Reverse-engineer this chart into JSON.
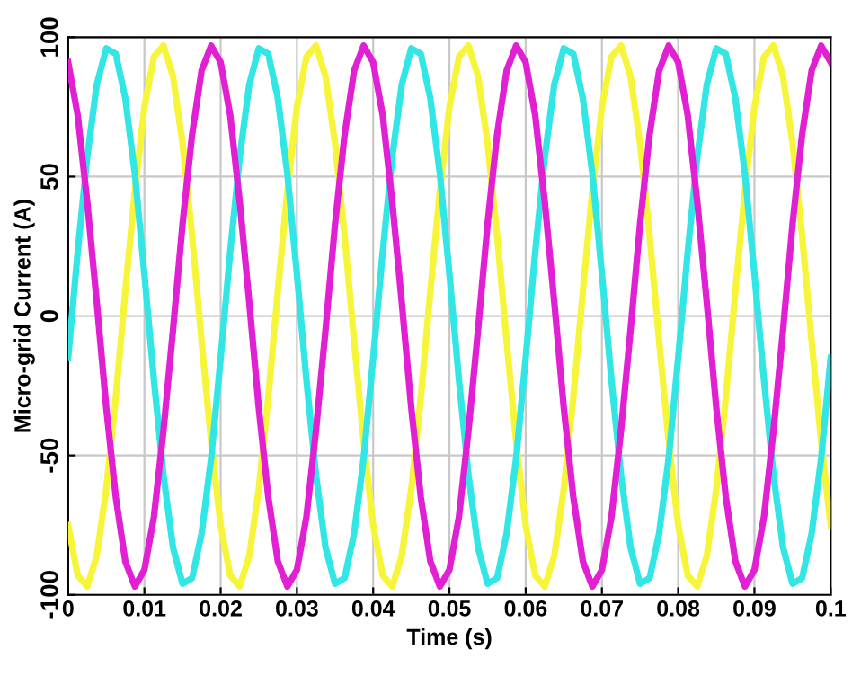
{
  "chart_data": {
    "type": "line",
    "xlabel": "Time (s)",
    "ylabel": "Micro-grid Current (A)",
    "x": [
      0,
      0.00125,
      0.0025,
      0.00375,
      0.005,
      0.00625,
      0.0075,
      0.00875,
      0.01,
      0.01125,
      0.0125,
      0.01375,
      0.015,
      0.01625,
      0.0175,
      0.01875,
      0.02,
      0.02125,
      0.0225,
      0.02375,
      0.025,
      0.02625,
      0.0275,
      0.02875,
      0.03,
      0.03125,
      0.0325,
      0.03375,
      0.035,
      0.03625,
      0.0375,
      0.03875,
      0.04,
      0.04125,
      0.0425,
      0.04375,
      0.045,
      0.04625,
      0.0475,
      0.04875,
      0.05,
      0.05125,
      0.0525,
      0.05375,
      0.055,
      0.05625,
      0.0575,
      0.05875,
      0.06,
      0.06125,
      0.0625,
      0.06375,
      0.065,
      0.06625,
      0.0675,
      0.06875,
      0.07,
      0.07125,
      0.0725,
      0.07375,
      0.075,
      0.07625,
      0.0775,
      0.07875,
      0.08,
      0.08125,
      0.0825,
      0.08375,
      0.085,
      0.08625,
      0.0875,
      0.08875,
      0.09,
      0.09125,
      0.0925,
      0.09375,
      0.095,
      0.09625,
      0.0975,
      0.09875,
      0.1
    ],
    "series": [
      {
        "color": "#f7f53a",
        "values": [
          -75,
          -93,
          -97,
          -86,
          -62,
          -29,
          9,
          45,
          75,
          93,
          97,
          86,
          62,
          29,
          -9,
          -45,
          -75,
          -93,
          -97,
          -86,
          -62,
          -29,
          9,
          45,
          75,
          93,
          97,
          86,
          62,
          29,
          -9,
          -45,
          -75,
          -93,
          -97,
          -86,
          -62,
          -29,
          9,
          45,
          75,
          93,
          97,
          86,
          62,
          29,
          -9,
          -45,
          -75,
          -93,
          -97,
          -86,
          -62,
          -29,
          9,
          45,
          75,
          93,
          97,
          86,
          62,
          29,
          -9,
          -45,
          -75,
          -93,
          -97,
          -86,
          -62,
          -29,
          9,
          45,
          75,
          93,
          97,
          86,
          62,
          29,
          -9,
          -45,
          -75
        ]
      },
      {
        "color": "#33e6e6",
        "values": [
          -15,
          23,
          57,
          83,
          96,
          94,
          78,
          51,
          15,
          -23,
          -57,
          -83,
          -96,
          -94,
          -78,
          -51,
          -15,
          23,
          57,
          83,
          96,
          94,
          78,
          51,
          15,
          -23,
          -57,
          -83,
          -96,
          -94,
          -78,
          -51,
          -15,
          23,
          57,
          83,
          96,
          94,
          78,
          51,
          15,
          -23,
          -57,
          -83,
          -96,
          -94,
          -78,
          -51,
          -15,
          23,
          57,
          83,
          96,
          94,
          78,
          51,
          15,
          -23,
          -57,
          -83,
          -96,
          -94,
          -78,
          -51,
          -15,
          23,
          57,
          83,
          96,
          94,
          78,
          51,
          15,
          -23,
          -57,
          -83,
          -96,
          -94,
          -78,
          -51,
          -15
        ]
      },
      {
        "color": "#e020d2",
        "values": [
          91,
          72,
          41,
          5,
          -33,
          -65,
          -88,
          -97,
          -91,
          -72,
          -41,
          -5,
          33,
          65,
          88,
          97,
          91,
          72,
          41,
          5,
          -33,
          -65,
          -88,
          -97,
          -91,
          -72,
          -41,
          -5,
          33,
          65,
          88,
          97,
          91,
          72,
          41,
          5,
          -33,
          -65,
          -88,
          -97,
          -91,
          -72,
          -41,
          -5,
          33,
          65,
          88,
          97,
          91,
          72,
          41,
          5,
          -33,
          -65,
          -88,
          -97,
          -91,
          -72,
          -41,
          -5,
          33,
          65,
          88,
          97,
          91,
          72,
          41,
          5,
          -33,
          -65,
          -88,
          -97,
          -91,
          -72,
          -41,
          -5,
          33,
          65,
          88,
          97,
          91
        ]
      }
    ],
    "xlim": [
      0,
      0.1
    ],
    "ylim": [
      -100,
      100
    ],
    "xticks": [
      0,
      0.01,
      0.02,
      0.03,
      0.04,
      0.05,
      0.06,
      0.07,
      0.08,
      0.09,
      0.1
    ],
    "yticks": [
      -100,
      -50,
      0,
      50,
      100
    ],
    "grid": true,
    "legend": false,
    "marker": "none",
    "line_style": "solid"
  }
}
